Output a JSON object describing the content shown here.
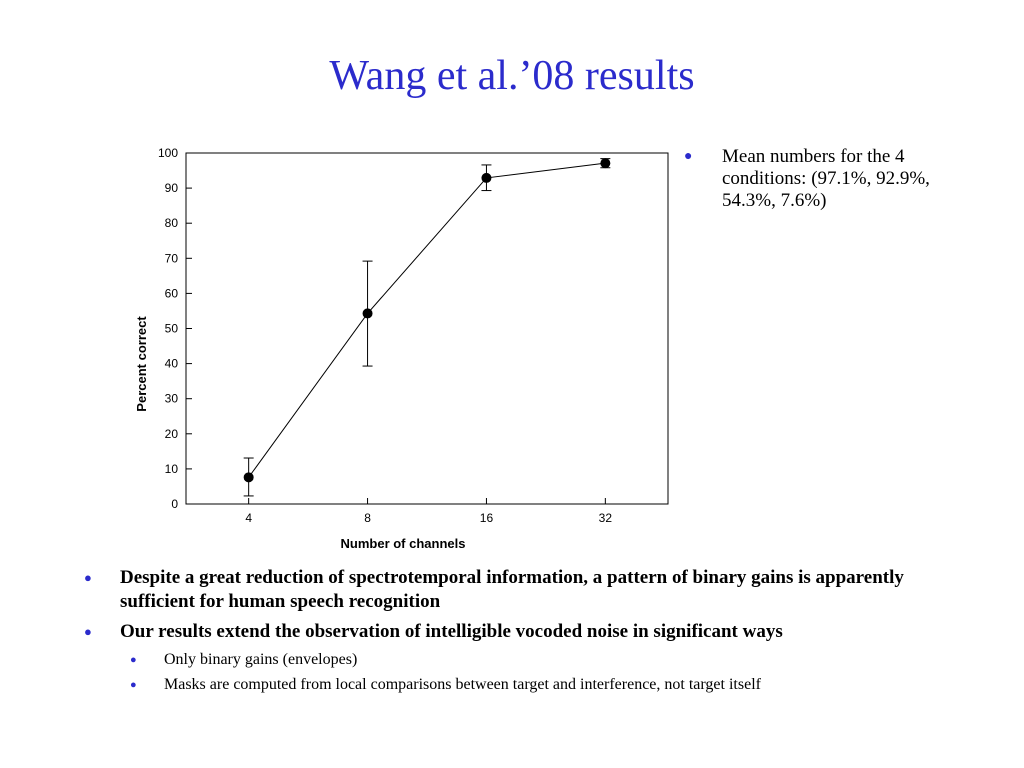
{
  "slide": {
    "title": "Wang et al.’08 results",
    "side_note": "Mean numbers for the 4 conditions: (97.1%, 92.9%, 54.3%, 7.6%)",
    "bullets": [
      "Despite a great reduction of spectrotemporal information, a pattern of binary gains is apparently sufficient for human speech recognition",
      "Our results extend the observation of intelligible vocoded noise in significant ways"
    ],
    "sub_bullets": [
      "Only binary gains (envelopes)",
      "Masks are computed from local comparisons between target and interference, not target itself"
    ]
  },
  "colors": {
    "title": "#2b2bcc",
    "bullet": "#2b2bcc",
    "line": "#000000"
  },
  "chart_data": {
    "type": "line",
    "title": "",
    "xlabel": "Number of channels",
    "ylabel": "Percent correct",
    "categories": [
      "4",
      "8",
      "16",
      "32"
    ],
    "series": [
      {
        "values": [
          7.6,
          54.3,
          92.9,
          97.1
        ],
        "error_low": [
          2.3,
          39.3,
          89.3,
          95.8
        ],
        "error_high": [
          13.1,
          69.2,
          96.6,
          98.4
        ]
      }
    ],
    "ylim": [
      0,
      100
    ],
    "yticks": [
      0,
      10,
      20,
      30,
      40,
      50,
      60,
      70,
      80,
      90,
      100
    ],
    "grid": false,
    "legend": "none"
  }
}
